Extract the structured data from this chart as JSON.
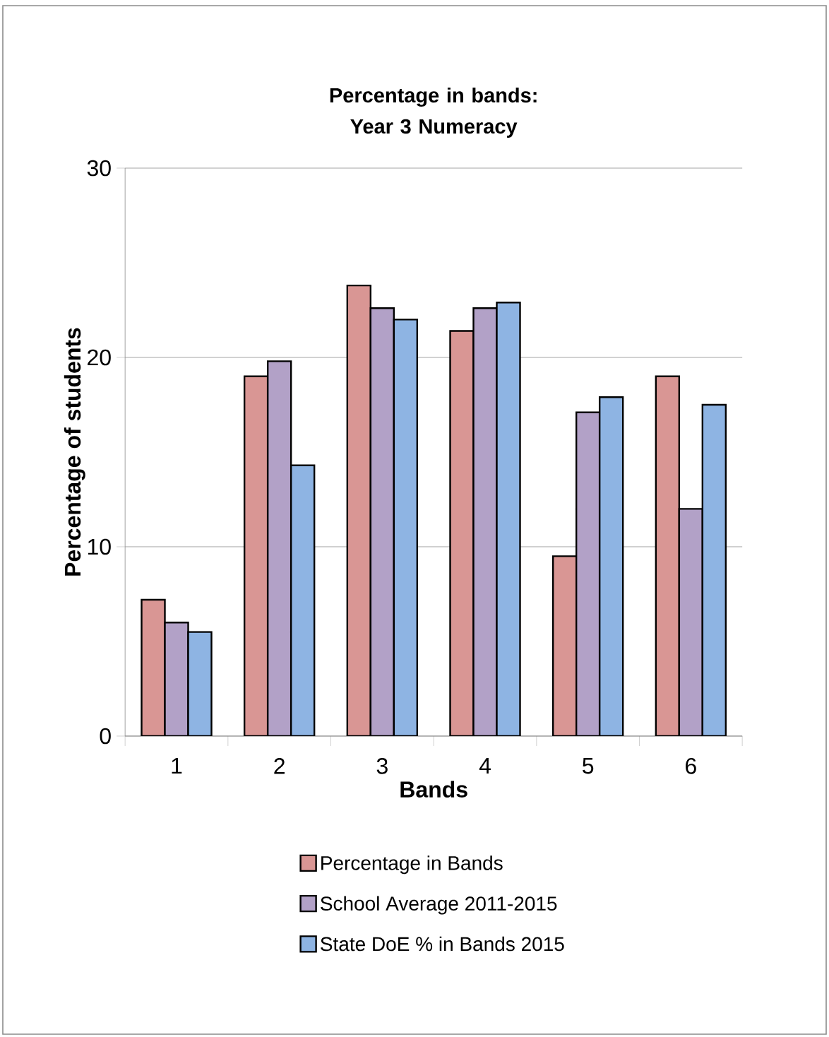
{
  "chart_data": {
    "type": "bar",
    "title": "Percentage in bands: Year 3 Numeracy",
    "xlabel": "Bands",
    "ylabel": "Percentage of students",
    "categories": [
      "1",
      "2",
      "3",
      "4",
      "5",
      "6"
    ],
    "series": [
      {
        "name": "Percentage in Bands",
        "color": "#d99694",
        "values": [
          7.2,
          19.0,
          23.8,
          21.4,
          9.5,
          19.0
        ]
      },
      {
        "name": "School Average 2011-2015",
        "color": "#b2a1c7",
        "values": [
          6.0,
          19.8,
          22.6,
          22.6,
          17.1,
          12.0
        ]
      },
      {
        "name": "State DoE % in Bands 2015",
        "color": "#8eb4e3",
        "values": [
          5.5,
          14.3,
          22.0,
          22.9,
          17.9,
          17.5
        ]
      }
    ],
    "ylim": [
      0,
      30
    ],
    "yticks": [
      0,
      10,
      20,
      30
    ],
    "grid": "y",
    "legend": "bottom"
  }
}
